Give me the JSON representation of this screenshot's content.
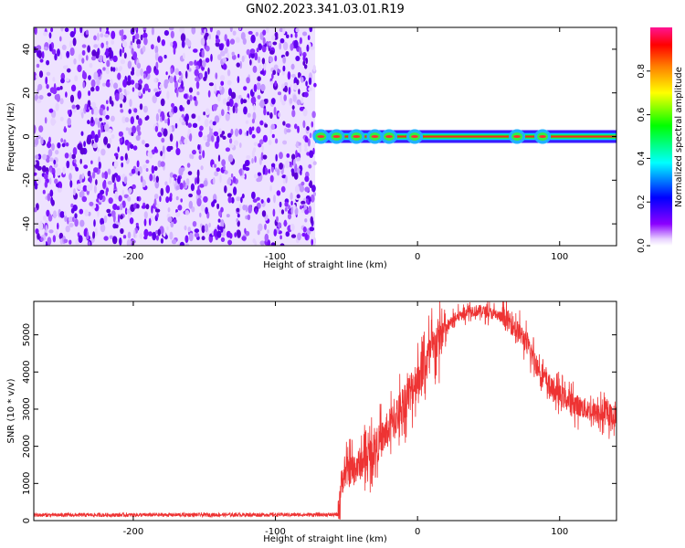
{
  "title": "GN02.2023.341.03.01.R19",
  "chart_data": [
    {
      "type": "heatmap",
      "xlabel": "Height of straight line (km)",
      "ylabel": "Frequency (Hz)",
      "xlim": [
        -270,
        140
      ],
      "ylim": [
        -50,
        50
      ],
      "xticks": [
        -200,
        -100,
        0,
        100
      ],
      "yticks": [
        -40,
        -20,
        0,
        20,
        40
      ],
      "colorbar": {
        "label": "Normalized spectral amplitude",
        "range": [
          0,
          1
        ],
        "ticks": [
          0.0,
          0.2,
          0.4,
          0.6,
          0.8
        ],
        "colormap": "gist_rainbow_r"
      },
      "noise_region_x": [
        -270,
        -72
      ],
      "signal": {
        "x_start": -72,
        "x_end": 140,
        "frequency": 0,
        "peaks": [
          {
            "x": -68,
            "value": 0.45
          },
          {
            "x": -57,
            "value": 0.5
          },
          {
            "x": -43,
            "value": 0.45
          },
          {
            "x": -30,
            "value": 0.6
          },
          {
            "x": -20,
            "value": 0.55
          },
          {
            "x": -2,
            "value": 0.5
          },
          {
            "x": 70,
            "value": 0.5
          },
          {
            "x": 88,
            "value": 0.55
          }
        ]
      }
    },
    {
      "type": "line",
      "xlabel": "Height of straight line (km)",
      "ylabel": "SNR (10 * v/v)",
      "xlim": [
        -270,
        140
      ],
      "ylim": [
        0,
        5900
      ],
      "xticks": [
        -200,
        -100,
        0,
        100
      ],
      "yticks": [
        0,
        1000,
        2000,
        3000,
        4000,
        5000
      ],
      "color": "#ee3333",
      "envelope": {
        "x": [
          -270,
          -56,
          -54,
          -52,
          -45,
          -35,
          -25,
          -15,
          -5,
          5,
          15,
          25,
          35,
          45,
          55,
          65,
          75,
          85,
          95,
          105,
          115,
          125,
          140
        ],
        "y": [
          150,
          160,
          900,
          1250,
          1400,
          1700,
          2200,
          2800,
          3500,
          4200,
          4900,
          5400,
          5650,
          5650,
          5550,
          5350,
          4900,
          4100,
          3500,
          3250,
          3050,
          2900,
          2800
        ]
      }
    }
  ]
}
